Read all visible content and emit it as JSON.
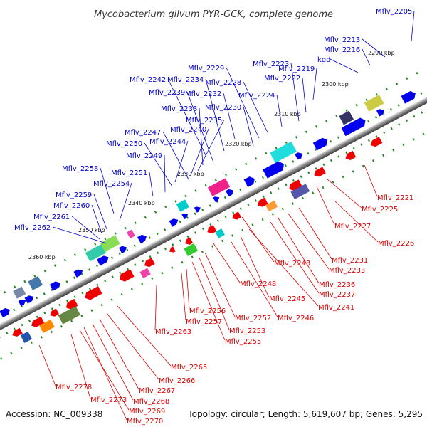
{
  "title": "Mycobacterium gilvum PYR-GCK, complete genome",
  "accession": "Accession: NC_009338",
  "summary": "Topology: circular; Length: 5,619,607 bp; Genes: 5,295",
  "colors": {
    "forward": "#0000ee",
    "reverse": "#ee0000",
    "forward_label": "#0000cc",
    "reverse_label": "#dd0000",
    "tick": "#228822"
  },
  "kbp_ticks": [
    "2290 kbp",
    "2300 kbp",
    "2310 kbp",
    "2320 kbp",
    "2330 kbp",
    "2340 kbp",
    "2350 kbp",
    "2360 kbp"
  ],
  "top_labels": [
    "Mflv_2205",
    "Mflv_2213",
    "Mflv_2216",
    "kgd",
    "Mflv_2219",
    "Mflv_2222",
    "Mflv_2223",
    "Mflv_2224",
    "Mflv_2228",
    "Mflv_2229",
    "Mflv_2232",
    "Mflv_2230",
    "Mflv_2234",
    "Mflv_2242",
    "Mflv_2239",
    "Mflv_2238",
    "Mflv_2235",
    "Mflv_2240",
    "Mflv_2247",
    "Mflv_2244",
    "Mflv_2250",
    "Mflv_2249",
    "Mflv_2251",
    "Mflv_2258",
    "Mflv_2254",
    "Mflv_2259",
    "Mflv_2260",
    "Mflv_2261",
    "Mflv_2262"
  ],
  "bottom_labels": [
    "Mflv_2221",
    "Mflv_2225",
    "Mflv_2227",
    "Mflv_2226",
    "Mflv_2231",
    "Mflv_2233",
    "Mflv_2236",
    "Mflv_2237",
    "Mflv_2243",
    "Mflv_2241",
    "Mflv_2245",
    "Mflv_2246",
    "Mflv_2248",
    "Mflv_2252",
    "Mflv_2253",
    "Mflv_2255",
    "Mflv_2256",
    "Mflv_2257",
    "Mflv_2263",
    "Mflv_2265",
    "Mflv_2266",
    "Mflv_2267",
    "Mflv_2268",
    "Mflv_2278",
    "Mflv_2273",
    "Mflv_2269",
    "Mflv_2270"
  ]
}
